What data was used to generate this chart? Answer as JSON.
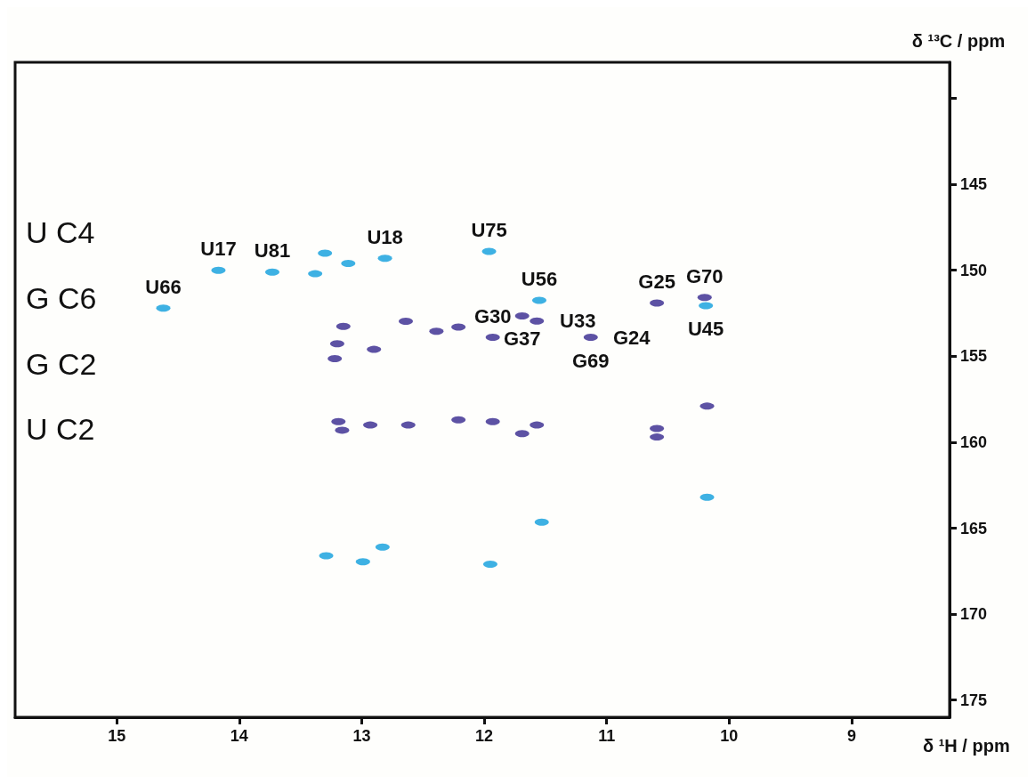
{
  "chart_data": {
    "type": "scatter",
    "xlabel": "δ ¹H / ppm",
    "ylabel": "δ ¹³C / ppm",
    "xlim": [
      15.83,
      8.2
    ],
    "ylim": [
      176,
      137.9
    ],
    "xticks": [
      15,
      14,
      13,
      12,
      11,
      10,
      9
    ],
    "yticks": [
      {
        "value": 140,
        "label": null
      },
      145,
      150,
      155,
      160,
      165,
      170,
      175
    ],
    "grid": false,
    "marker": "circle",
    "series": [
      {
        "color": "#29a8e0",
        "x": [
          14.62,
          14.17,
          13.73,
          13.3,
          13.38,
          13.11,
          12.81,
          11.96,
          11.55,
          10.19,
          11.53,
          13.29,
          12.83,
          11.95,
          12.99,
          10.18
        ],
        "values": [
          152.2,
          150,
          150.1,
          149,
          150.2,
          149.6,
          149.3,
          148.9,
          151.75,
          152.06,
          164.65,
          166.6,
          166.1,
          167.1,
          166.95,
          163.2
        ]
      },
      {
        "color": "#4b3f9a",
        "x": [
          13.15,
          13.2,
          13.22,
          12.9,
          12.64,
          12.39,
          12.21,
          11.93,
          11.69,
          11.57,
          11.13,
          10.59,
          10.2,
          10.18,
          13.19,
          13.16,
          12.93,
          12.62,
          12.21,
          11.93,
          11.69,
          11.57,
          10.59,
          10.59
        ],
        "values": [
          153.26,
          154.27,
          155.14,
          154.6,
          152.96,
          153.55,
          153.3,
          153.9,
          152.65,
          152.95,
          153.9,
          151.9,
          151.58,
          157.9,
          158.8,
          159.3,
          159,
          159,
          158.7,
          158.8,
          159.5,
          159,
          159.2,
          159.7
        ]
      }
    ],
    "annotations": [
      "U C4",
      "G C6",
      "G C2",
      "U C2",
      {
        "text": "U66",
        "x": 14.62,
        "y": 152.2
      },
      {
        "text": "U17",
        "x": 14.17,
        "y": 150
      },
      {
        "text": "U81",
        "x": 13.73,
        "y": 150.1
      },
      {
        "text": "U18",
        "x": 12.81,
        "y": 149.3
      },
      {
        "text": "U75",
        "x": 11.96,
        "y": 148.9
      },
      {
        "text": "G37",
        "x": 11.69,
        "y": 152.65
      },
      {
        "text": "U56",
        "x": 11.55,
        "y": 151.75
      },
      {
        "text": "U33",
        "x": 11.57,
        "y": 152.95
      },
      {
        "text": "G25",
        "x": 10.59,
        "y": 151.9
      },
      {
        "text": "G70",
        "x": 10.2,
        "y": 151.58
      },
      {
        "text": "U45",
        "x": 10.19,
        "y": 152.06
      },
      {
        "text": "G69",
        "x": 11.13,
        "y": 153.9
      },
      {
        "text": "G24",
        "x": 11.13,
        "y": 153.9
      },
      {
        "text": "G30",
        "x": 11.93,
        "y": 153.9
      }
    ]
  }
}
